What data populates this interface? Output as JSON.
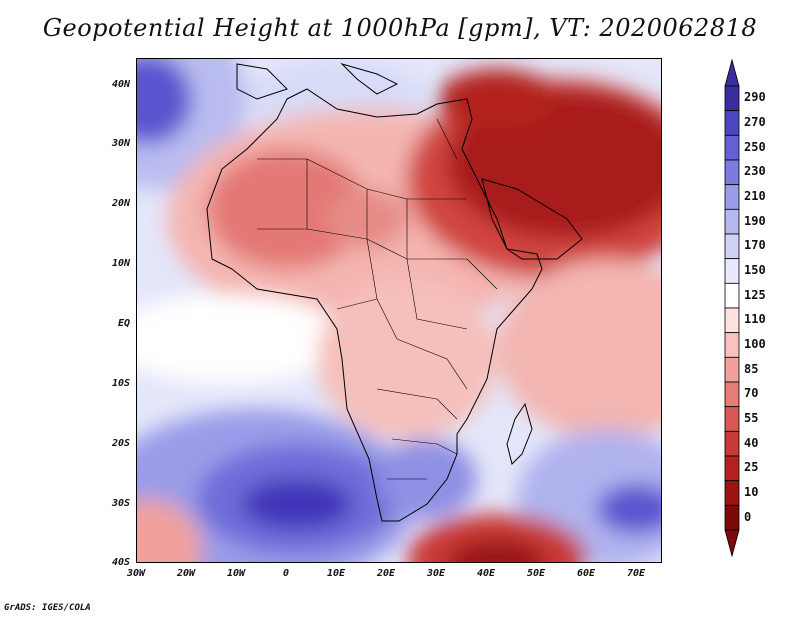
{
  "title": "Geopotential Height at 1000hPa [gpm], VT: 2020062818",
  "credit": "GrADS: IGES/COLA",
  "map": {
    "lat_labels": [
      "40N",
      "30N",
      "20N",
      "10N",
      "EQ",
      "10S",
      "20S",
      "30S",
      "40S"
    ],
    "lon_labels": [
      "30W",
      "20W",
      "10W",
      "0",
      "10E",
      "20E",
      "30E",
      "40E",
      "50E",
      "60E",
      "70E"
    ],
    "lat_range": [
      -40,
      45
    ],
    "lon_range": [
      -30,
      77
    ]
  },
  "colorbar": {
    "levels": [
      "290",
      "270",
      "250",
      "230",
      "210",
      "190",
      "170",
      "150",
      "125",
      "110",
      "100",
      "85",
      "70",
      "55",
      "40",
      "25",
      "10",
      "0"
    ],
    "colors": [
      "#3a2d9e",
      "#4d46c2",
      "#6560d6",
      "#7c7ce0",
      "#9a9ce8",
      "#b6b9f0",
      "#d0d3f6",
      "#e8eafb",
      "#ffffff",
      "#fde2e0",
      "#f8c3bf",
      "#f0a19c",
      "#e67d78",
      "#d95853",
      "#c93a36",
      "#b3221f",
      "#9a1412",
      "#7d0a08"
    ]
  }
}
